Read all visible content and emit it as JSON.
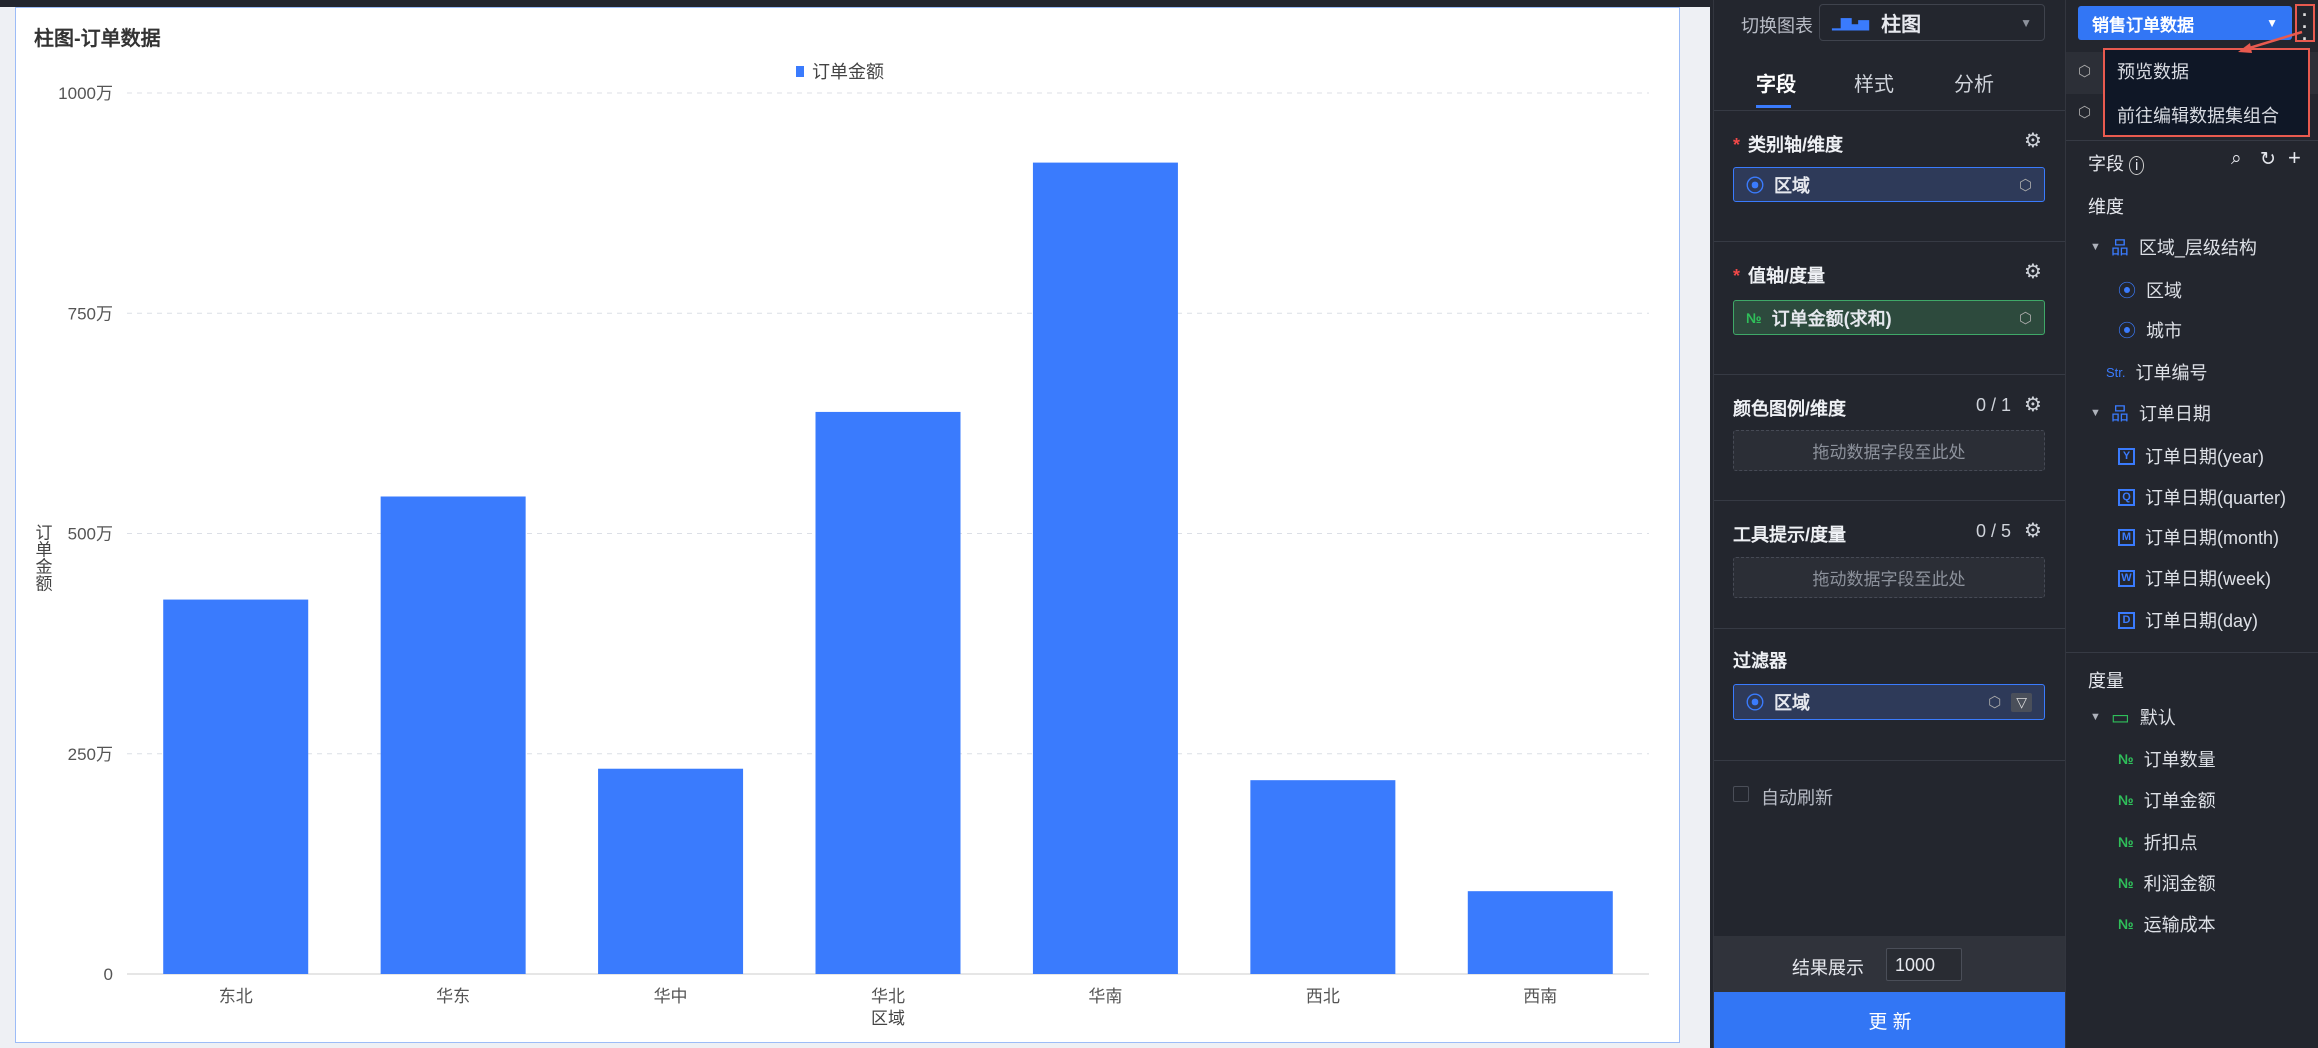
{
  "chart": {
    "title": "柱图-订单数据",
    "legend": "订单金额",
    "color": "#3a7bfd"
  },
  "chart_data": {
    "type": "bar",
    "title": "柱图-订单数据",
    "xlabel": "区域",
    "ylabel": "订单金额",
    "categories": [
      "东北",
      "华东",
      "华中",
      "华北",
      "华南",
      "西北",
      "西南"
    ],
    "series": [
      {
        "name": "订单金额",
        "values": [
          4250000,
          5420000,
          2330000,
          6380000,
          9210000,
          2200000,
          940000
        ]
      }
    ],
    "ylim": [
      0,
      10000000
    ],
    "yticks": [
      {
        "value": 0,
        "label": "0"
      },
      {
        "value": 2500000,
        "label": "250万"
      },
      {
        "value": 5000000,
        "label": "500万"
      },
      {
        "value": 7500000,
        "label": "750万"
      },
      {
        "value": 10000000,
        "label": "1000万"
      }
    ],
    "grid": true,
    "legend_position": "top-center"
  },
  "config": {
    "switch_label": "切换图表",
    "chart_type": "柱图",
    "tabs": [
      "字段",
      "样式",
      "分析"
    ],
    "category_axis": {
      "label": "类别轴/维度",
      "field": "区域"
    },
    "value_axis": {
      "label": "值轴/度量",
      "field": "订单金额(求和)"
    },
    "color_legend": {
      "label": "颜色图例/维度",
      "count": "0 / 1",
      "placeholder": "拖动数据字段至此处"
    },
    "tooltip": {
      "label": "工具提示/度量",
      "count": "0 / 5",
      "placeholder": "拖动数据字段至此处"
    },
    "filter": {
      "label": "过滤器",
      "field": "区域"
    },
    "auto_refresh": "自动刷新",
    "result_label": "结果展示",
    "result_value": "1000",
    "update_button": "更 新"
  },
  "dataset": {
    "name": "销售订单数据",
    "menu": [
      "预览数据",
      "前往编辑数据集组合"
    ],
    "fields_label": "字段",
    "dimension_label": "维度",
    "dimensions": [
      {
        "label": "区域_层级结构",
        "type": "hierarchy",
        "level": 0
      },
      {
        "label": "区域",
        "type": "geo",
        "level": 1
      },
      {
        "label": "城市",
        "type": "geo",
        "level": 1
      },
      {
        "label": "订单编号",
        "type": "Str",
        "level": 0
      },
      {
        "label": "订单日期",
        "type": "hierarchy",
        "level": 0
      },
      {
        "label": "订单日期(year)",
        "type": "Y",
        "level": 1
      },
      {
        "label": "订单日期(quarter)",
        "type": "Q",
        "level": 1
      },
      {
        "label": "订单日期(month)",
        "type": "M",
        "level": 1
      },
      {
        "label": "订单日期(week)",
        "type": "W",
        "level": 1
      },
      {
        "label": "订单日期(day)",
        "type": "D",
        "level": 1
      }
    ],
    "measure_label": "度量",
    "measure_folder": "默认",
    "measures": [
      "订单数量",
      "订单金额",
      "折扣点",
      "利润金额",
      "运输成本"
    ]
  }
}
